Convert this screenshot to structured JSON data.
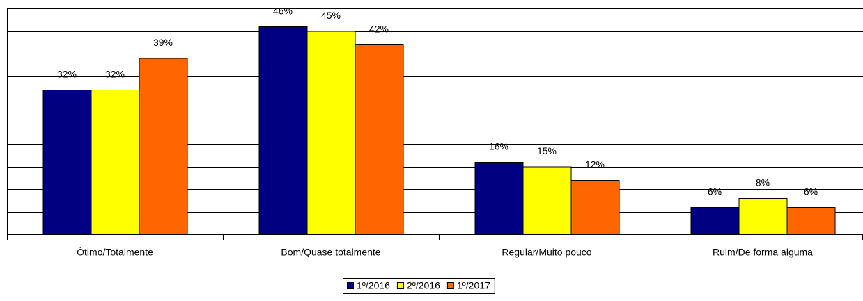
{
  "chart_data": {
    "type": "bar",
    "categories": [
      "Ótimo/Totalmente",
      "Bom/Quase totalmente",
      "Regular/Muito pouco",
      "Ruim/De forma alguma"
    ],
    "series": [
      {
        "name": "1º/2016",
        "color": "#000080",
        "values": [
          32,
          46,
          16,
          6
        ],
        "value_labels": [
          "32%",
          "46%",
          "16%",
          "6%"
        ]
      },
      {
        "name": "2º/2016",
        "color": "#ffff00",
        "values": [
          32,
          45,
          15,
          8
        ],
        "value_labels": [
          "32%",
          "45%",
          "15%",
          "8%"
        ]
      },
      {
        "name": "1º/2017",
        "color": "#ff6600",
        "values": [
          39,
          42,
          12,
          6
        ],
        "value_labels": [
          "39%",
          "42%",
          "12%",
          "6%"
        ]
      }
    ],
    "ylim": [
      0,
      50
    ],
    "yticks": [
      0,
      5,
      10,
      15,
      20,
      25,
      30,
      35,
      40,
      45,
      50
    ],
    "grid": true,
    "legend": "bottom"
  }
}
